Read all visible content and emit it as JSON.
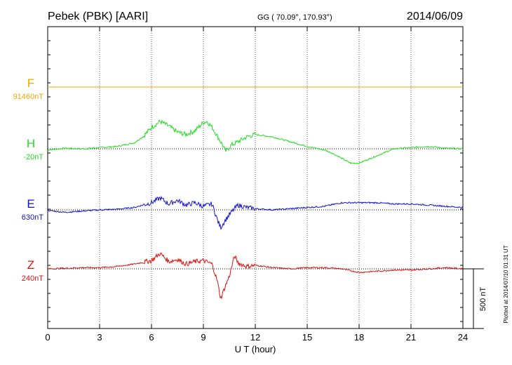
{
  "header": {
    "station": "Pebek (PBK)  [AARI]",
    "coords": "GG ( 70.09°, 170.93°)",
    "date": "2014/06/09"
  },
  "plotted_note": "Plotted at 2014/07/10 01:31  UT",
  "scale_label": "500 nT",
  "colors": {
    "F": "#f0a800",
    "H": "#22dd22",
    "E": "#1111cc",
    "Z": "#dd1111",
    "axis": "#000000",
    "grid": "#555555"
  },
  "chart_data": {
    "type": "line",
    "xlabel": "U T (hour)",
    "ylabel": "",
    "xlim": [
      0,
      24
    ],
    "xticks": [
      0,
      3,
      6,
      9,
      12,
      15,
      18,
      21,
      24
    ],
    "grid": true,
    "scale_bar_nT": 500,
    "series": [
      {
        "name": "F",
        "baseline_label": "91460nT",
        "x": [
          0,
          24
        ],
        "y": [
          0,
          0
        ]
      },
      {
        "name": "H",
        "baseline_label": "-20nT",
        "x": [
          0,
          1,
          2,
          3,
          4,
          5,
          5.5,
          6,
          6.5,
          7,
          7.5,
          8,
          8.5,
          9,
          9.2,
          9.5,
          10,
          10.3,
          10.6,
          11,
          11.5,
          12,
          13,
          14,
          15,
          16,
          16.5,
          17,
          17.5,
          18,
          19,
          20,
          21,
          22,
          23,
          24
        ],
        "y": [
          -10,
          5,
          0,
          10,
          20,
          50,
          100,
          180,
          230,
          190,
          140,
          120,
          150,
          220,
          230,
          180,
          60,
          -20,
          30,
          60,
          100,
          120,
          100,
          60,
          20,
          -10,
          -40,
          -80,
          -120,
          -120,
          -60,
          0,
          10,
          20,
          5,
          0
        ]
      },
      {
        "name": "E",
        "baseline_label": "630nT",
        "x": [
          0,
          1,
          2,
          3,
          4,
          5,
          6,
          6.5,
          7,
          7.5,
          8,
          8.5,
          9,
          9.5,
          9.8,
          10,
          10.2,
          10.5,
          10.8,
          11,
          11.5,
          12,
          13,
          14,
          15,
          16,
          17,
          18,
          19,
          20,
          21,
          22,
          23,
          24
        ],
        "y": [
          -5,
          -20,
          -10,
          0,
          5,
          20,
          60,
          100,
          50,
          80,
          40,
          60,
          30,
          50,
          -80,
          -150,
          -100,
          -40,
          10,
          40,
          20,
          10,
          0,
          10,
          20,
          30,
          60,
          60,
          60,
          50,
          50,
          40,
          30,
          20
        ]
      },
      {
        "name": "Z",
        "baseline_label": "240nT",
        "x": [
          0,
          1,
          2,
          3,
          4,
          5,
          6,
          6.5,
          7,
          7.5,
          8,
          8.5,
          9,
          9.5,
          9.8,
          10,
          10.2,
          10.5,
          10.8,
          11,
          11.5,
          12,
          13,
          14,
          15,
          16,
          17,
          18,
          19,
          20,
          21,
          22,
          23,
          24
        ],
        "y": [
          0,
          5,
          10,
          10,
          20,
          40,
          70,
          130,
          60,
          80,
          40,
          60,
          70,
          40,
          -100,
          -250,
          -170,
          -60,
          110,
          50,
          20,
          30,
          10,
          0,
          10,
          10,
          0,
          -30,
          -20,
          -10,
          -10,
          0,
          10,
          0
        ]
      }
    ]
  }
}
